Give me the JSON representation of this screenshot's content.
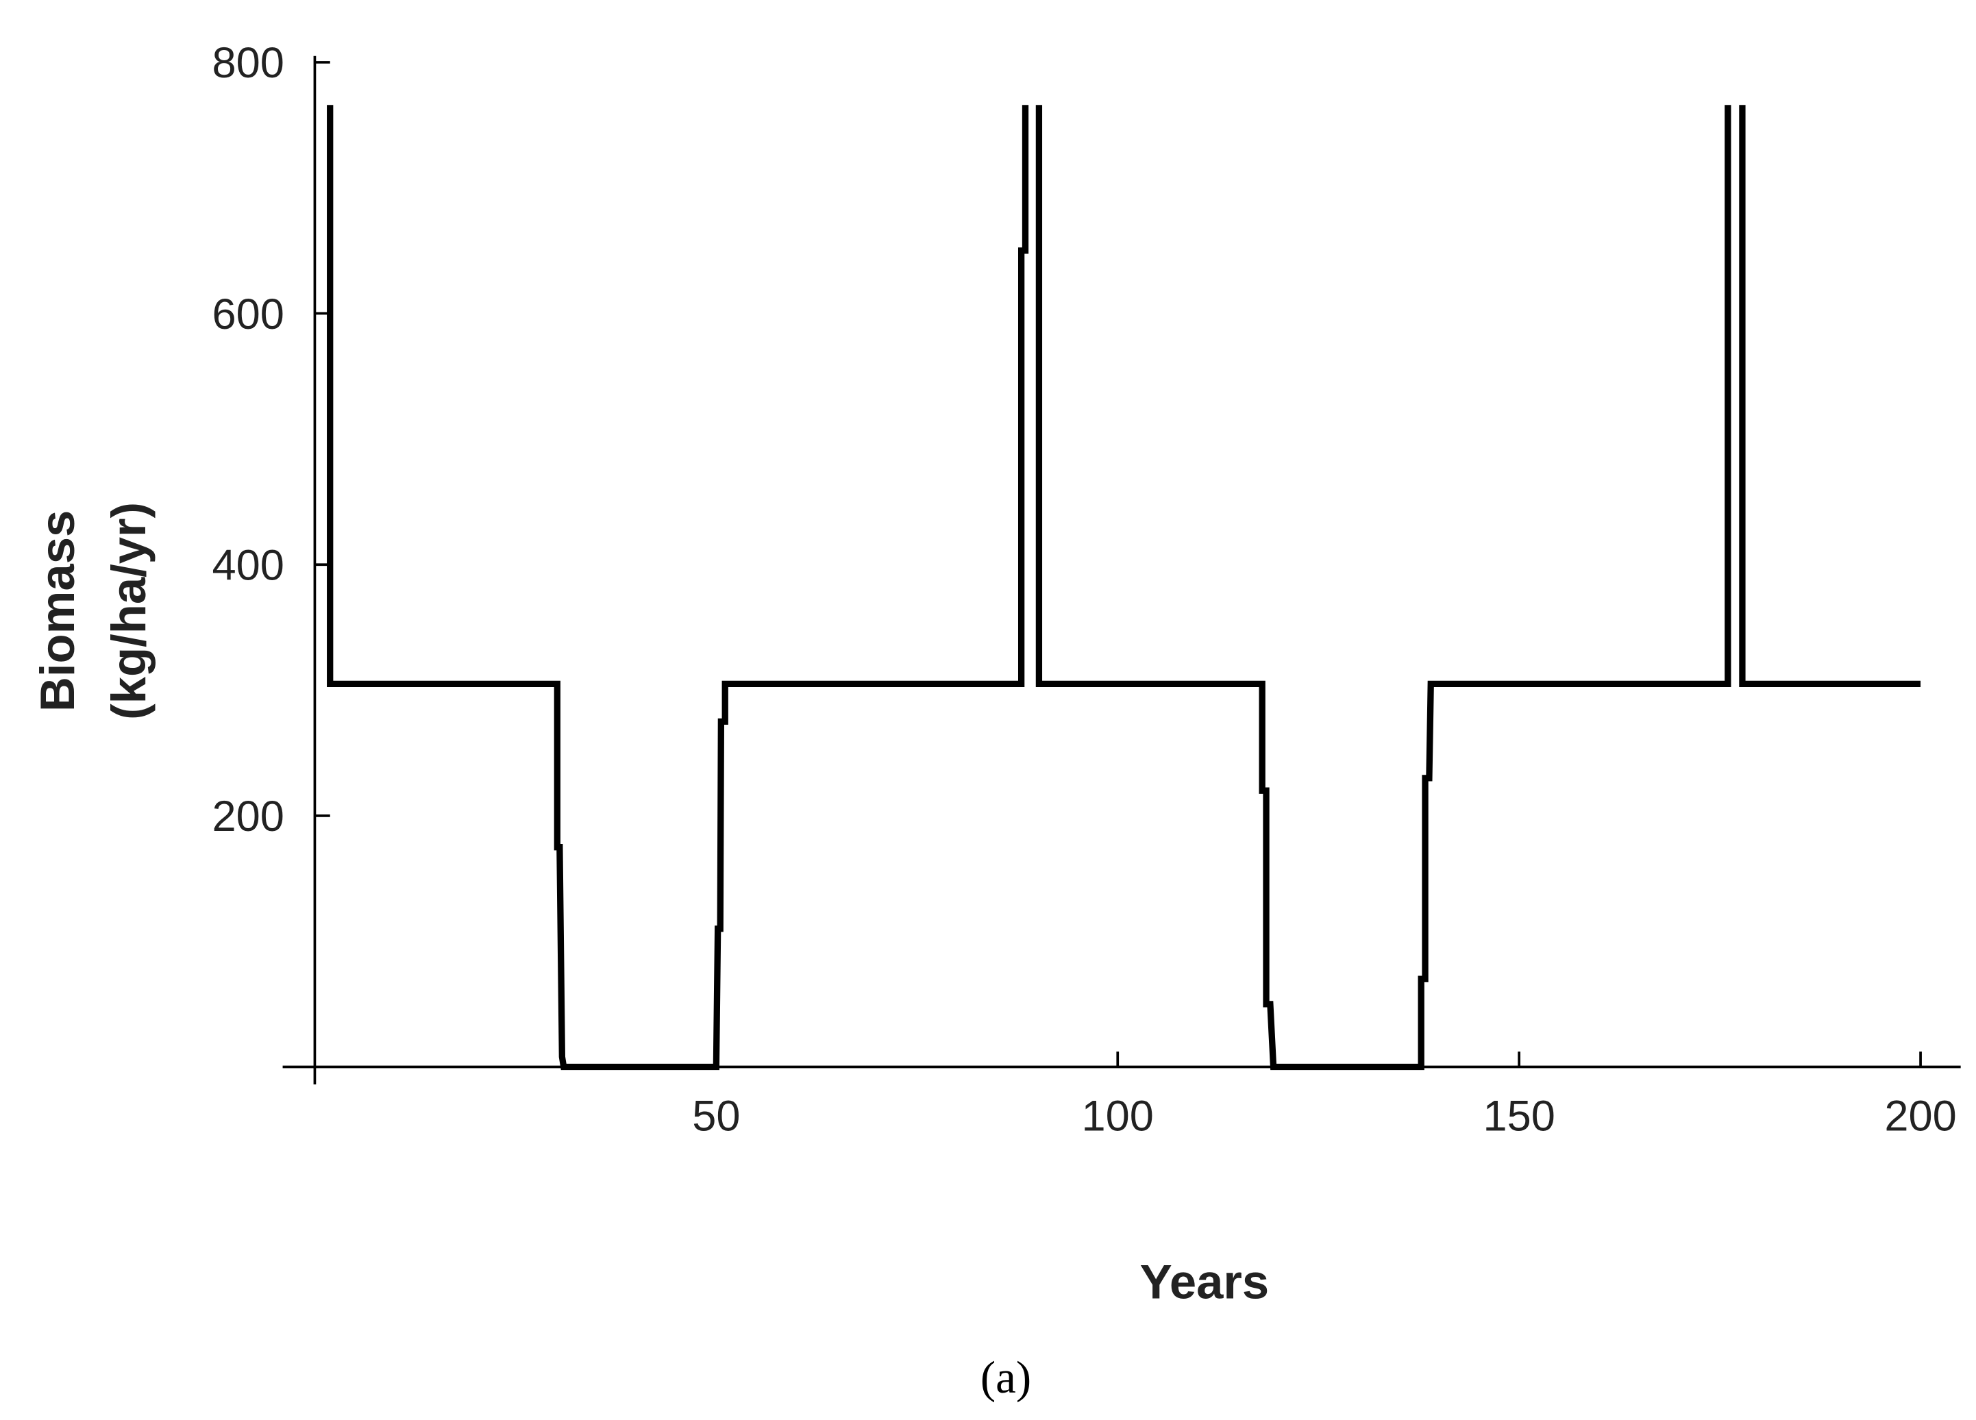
{
  "chart_data": {
    "type": "line",
    "ylabel_lines": [
      "Biomass",
      "(kg/ha/yr)"
    ],
    "xlabel": "Years",
    "caption": "(a)",
    "color": "#000000",
    "x": [
      1.9,
      1.9,
      30.2,
      30.2,
      30.5,
      30.8,
      31,
      50,
      50.2,
      50.5,
      50.6,
      51.1,
      51.1,
      88,
      88,
      88.5,
      88.5,
      null,
      90.2,
      90.2,
      118,
      118,
      118.5,
      118.5,
      119,
      119.4,
      137.8,
      137.8,
      138.3,
      138.3,
      138.8,
      139,
      176,
      176,
      null,
      177.8,
      177.8,
      200
    ],
    "values": [
      766,
      305,
      305,
      175,
      175,
      8,
      0,
      0,
      110,
      110,
      275,
      275,
      305,
      305,
      650,
      650,
      766,
      null,
      766,
      305,
      305,
      220,
      220,
      50,
      50,
      0,
      0,
      70,
      70,
      230,
      230,
      305,
      305,
      766,
      null,
      766,
      305,
      305
    ],
    "xlim": [
      -4,
      205
    ],
    "ylim": [
      -14,
      805
    ],
    "xticks": [
      50,
      100,
      150,
      200
    ],
    "yticks": [
      200,
      400,
      600,
      800
    ]
  }
}
